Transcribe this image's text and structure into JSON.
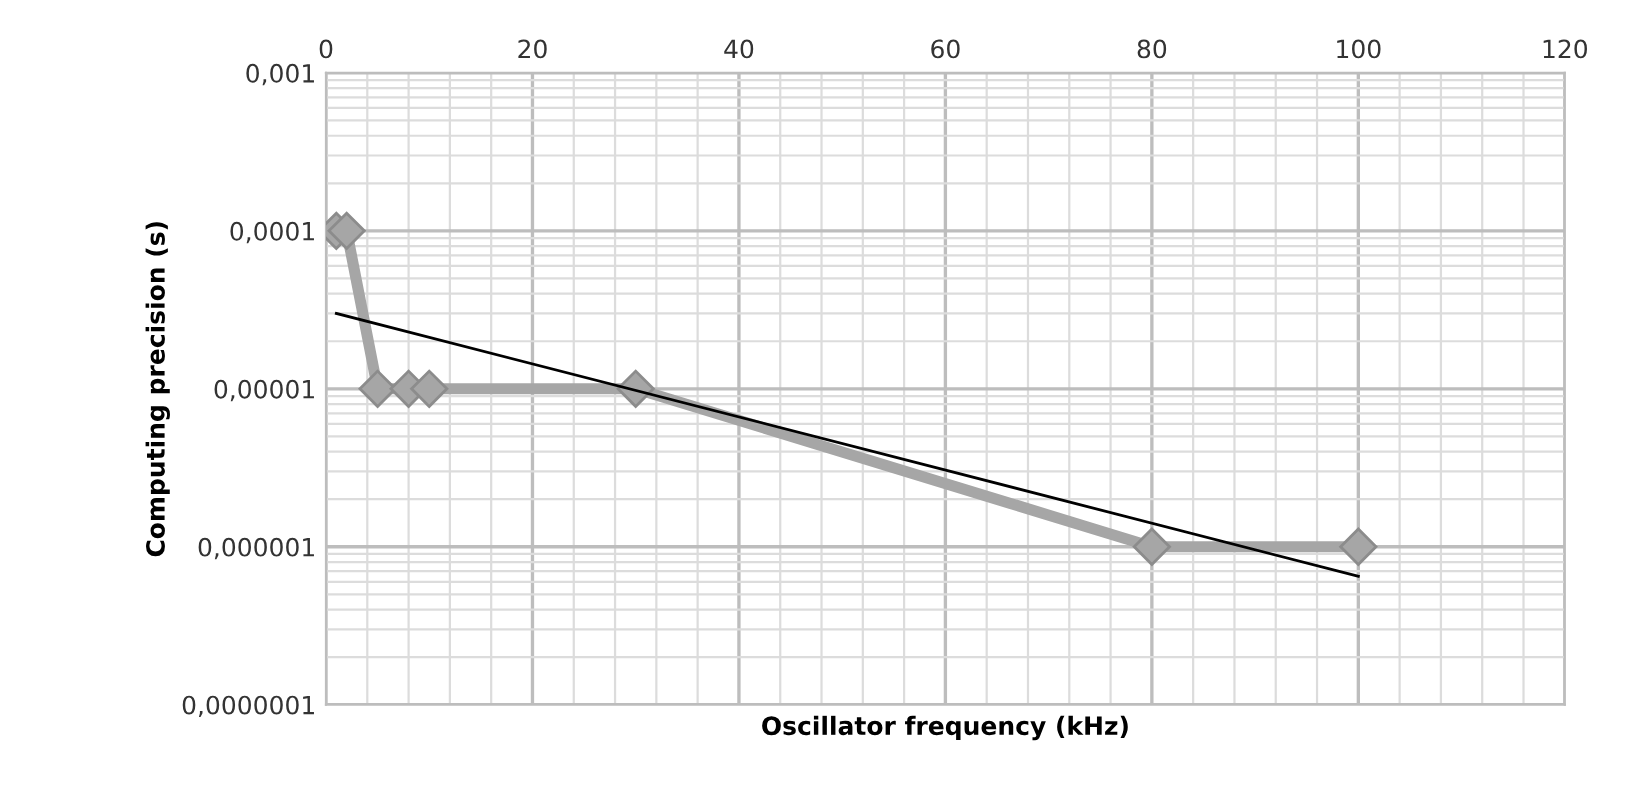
{
  "chart_data": {
    "type": "line",
    "xlabel": "Oscillator frequency (kHz)",
    "ylabel": "Computing precision (s)",
    "log": "y",
    "xlim": [
      0,
      120
    ],
    "xticks": [
      0,
      20,
      40,
      60,
      80,
      100,
      120
    ],
    "ylim": [
      1e-07,
      0.001
    ],
    "yticks": [
      {
        "value": 1e-07,
        "label": "0,0000001"
      },
      {
        "value": 1e-06,
        "label": "0,000001"
      },
      {
        "value": 1e-05,
        "label": "0,00001"
      },
      {
        "value": 0.0001,
        "label": "0,0001"
      },
      {
        "value": 0.001,
        "label": "0,001"
      }
    ],
    "grid": true,
    "series": [
      {
        "color": "#a6a6a6",
        "x": [
          1,
          2,
          5,
          8,
          10,
          30,
          80,
          100
        ],
        "values": [
          0.0001,
          0.0001,
          1e-05,
          1e-05,
          1e-05,
          1e-05,
          1e-06,
          1e-06
        ],
        "marker": "diamond",
        "line_style": "solid"
      },
      {
        "color": "#000000",
        "x": [
          1,
          100
        ],
        "values": [
          3e-05,
          6.5e-07
        ],
        "marker": "none",
        "line_style": "solid"
      }
    ]
  }
}
